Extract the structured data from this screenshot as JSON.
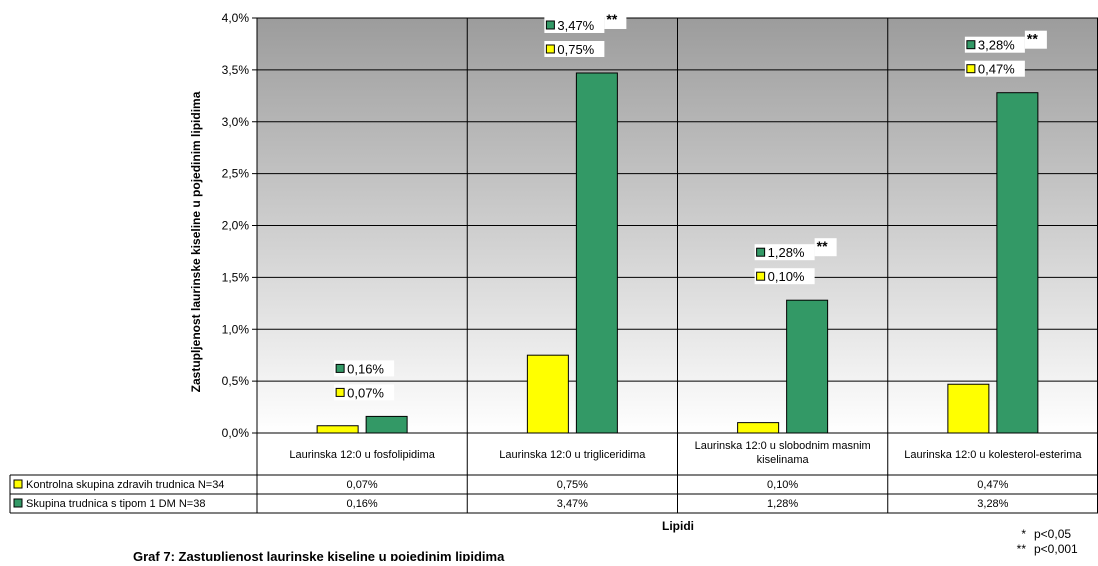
{
  "chart_data": {
    "type": "bar",
    "categories": [
      "Laurinska 12:0 u fosfolipidima",
      "Laurinska 12:0 u trigliceridima",
      "Laurinska 12:0 u slobodnim masnim kiselinama",
      "Laurinska 12:0 u kolesterol-esterima"
    ],
    "category_lines": [
      [
        "Laurinska 12:0 u fosfolipidima"
      ],
      [
        "Laurinska 12:0 u trigliceridima"
      ],
      [
        "Laurinska 12:0 u slobodnim masnim",
        "kiselinama"
      ],
      [
        "Laurinska 12:0 u kolesterol-esterima"
      ]
    ],
    "series": [
      {
        "name": "Kontrolna skupina zdravih trudnica N=34",
        "color": "#ffff00",
        "values": [
          0.07,
          0.75,
          0.1,
          0.47
        ],
        "labels": [
          "0,07%",
          "0,75%",
          "0,10%",
          "0,47%"
        ]
      },
      {
        "name": "Skupina trudnica s tipom 1 DM N=38",
        "color": "#339966",
        "values": [
          0.16,
          3.47,
          1.28,
          3.28
        ],
        "labels": [
          "0,16%",
          "3,47%",
          "1,28%",
          "3,28%"
        ],
        "significance": [
          "",
          "**",
          "**",
          "**"
        ]
      }
    ],
    "ylim": [
      0,
      4.0
    ],
    "yticks": [
      0,
      0.5,
      1.0,
      1.5,
      2.0,
      2.5,
      3.0,
      3.5,
      4.0
    ],
    "ytick_labels": [
      "0,0%",
      "0,5%",
      "1,0%",
      "1,5%",
      "2,0%",
      "2,5%",
      "3,0%",
      "3,5%",
      "4,0%"
    ],
    "ylabel": "Zastupljenost laurinske kiseline u pojedinim lipidima",
    "xlabel": "Lipidi",
    "grid": true,
    "legend": "data-table",
    "plot_background": "gray-gradient"
  },
  "footnotes": [
    {
      "mark": "*",
      "text": "p<0,05"
    },
    {
      "mark": "**",
      "text": "p<0,001"
    }
  ],
  "caption": "Graf 7: Zastupljenost laurinske kiseline u pojedinim lipidima"
}
